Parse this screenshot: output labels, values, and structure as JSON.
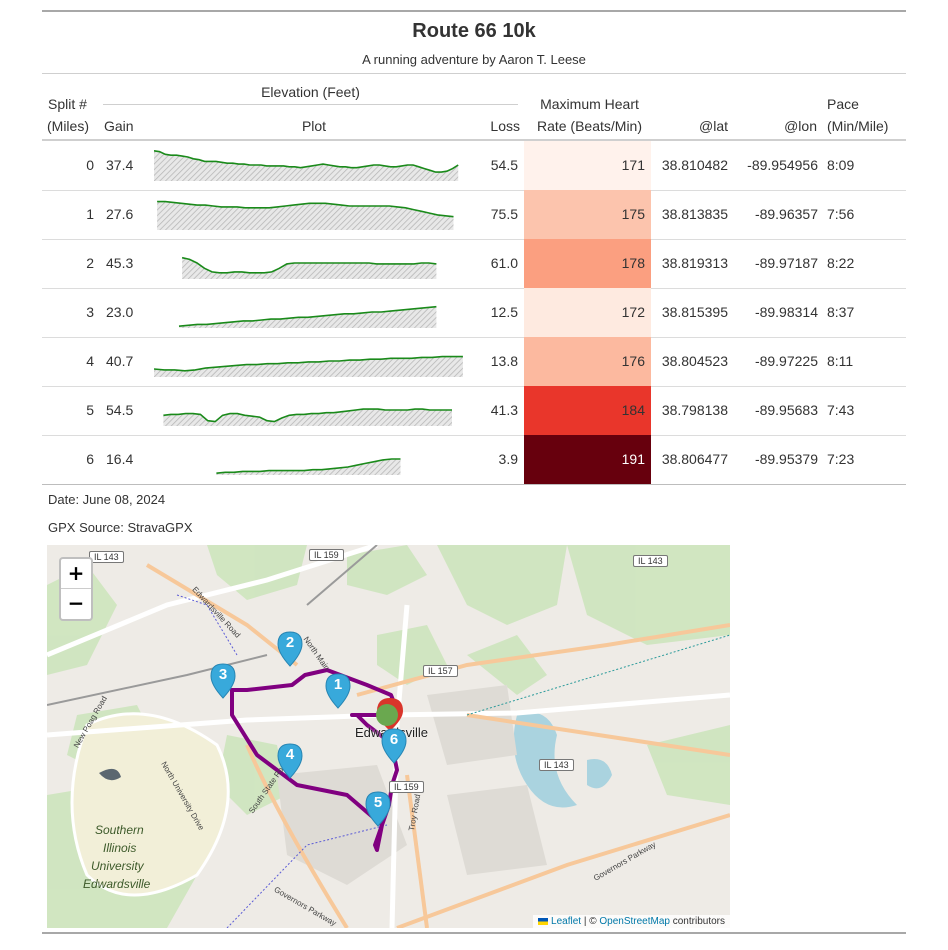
{
  "header": {
    "title": "Route 66 10k",
    "subtitle": "A running adventure by Aaron T. Leese"
  },
  "columns": {
    "split_line1": "Split #",
    "split_line2": "(Miles)",
    "elevation_spanner": "Elevation (Feet)",
    "gain": "Gain",
    "plot": "Plot",
    "loss": "Loss",
    "hr_line1": "Maximum Heart",
    "hr_line2": "Rate (Beats/Min)",
    "lat": "@lat",
    "lon": "@lon",
    "pace_line1": "Pace",
    "pace_line2": "(Min/Mile)"
  },
  "rows": [
    {
      "split": "0",
      "gain": "37.4",
      "loss": "54.5",
      "hr": "171",
      "lat": "38.810482",
      "lon": "-89.954956",
      "pace": "8:09",
      "hr_color": "#fff2ec",
      "hr_text": "#333333",
      "elev": [
        62,
        61,
        58,
        57,
        57,
        56,
        55,
        53,
        52,
        50,
        50,
        50,
        49,
        48,
        48,
        47,
        47,
        46,
        46,
        46,
        45,
        45,
        45,
        45,
        44,
        44,
        43,
        44,
        45,
        46,
        47,
        46,
        45,
        44,
        44,
        43,
        43,
        44,
        45,
        46,
        46,
        45,
        44,
        44,
        45,
        46,
        46,
        44,
        42,
        40,
        38,
        38,
        39,
        42,
        46
      ],
      "plot_span": [
        0.0,
        0.975
      ]
    },
    {
      "split": "1",
      "gain": "27.6",
      "loss": "75.5",
      "hr": "175",
      "lat": "38.813835",
      "lon": "-89.96357",
      "pace": "7:56",
      "hr_color": "#fcc4ad",
      "hr_text": "#333333",
      "elev": [
        60,
        60,
        59,
        58,
        57,
        56,
        56,
        55,
        54,
        54,
        54,
        53,
        53,
        53,
        53,
        54,
        55,
        56,
        57,
        58,
        58,
        58,
        57,
        56,
        55,
        55,
        55,
        55,
        55,
        55,
        54,
        53,
        51,
        49,
        47,
        45,
        44,
        43
      ],
      "plot_span": [
        0.01,
        0.96
      ]
    },
    {
      "split": "2",
      "gain": "45.3",
      "loss": "61.0",
      "hr": "178",
      "lat": "38.819313",
      "lon": "-89.97187",
      "pace": "8:22",
      "hr_color": "#fb9f80",
      "hr_text": "#333333",
      "elev": [
        52,
        50,
        46,
        40,
        36,
        35,
        35,
        36,
        36,
        35,
        35,
        35,
        36,
        40,
        45,
        46,
        46,
        46,
        46,
        46,
        46,
        46,
        46,
        46,
        46,
        46,
        45,
        45,
        45,
        45,
        45,
        45,
        46,
        46,
        45
      ],
      "plot_span": [
        0.09,
        0.905
      ]
    },
    {
      "split": "3",
      "gain": "23.0",
      "loss": "12.5",
      "hr": "172",
      "lat": "38.815395",
      "lon": "-89.98314",
      "pace": "8:37",
      "hr_color": "#feeae0",
      "hr_text": "#333333",
      "elev": [
        30,
        31,
        32,
        32,
        33,
        34,
        35,
        36,
        36,
        37,
        38,
        38,
        39,
        40,
        40,
        41,
        42,
        43,
        44,
        44,
        45,
        46,
        46,
        47,
        48,
        49,
        50,
        51,
        52
      ],
      "plot_span": [
        0.08,
        0.905
      ]
    },
    {
      "split": "4",
      "gain": "40.7",
      "loss": "13.8",
      "hr": "176",
      "lat": "38.804523",
      "lon": "-89.97225",
      "pace": "8:11",
      "hr_color": "#fcb99f",
      "hr_text": "#333333",
      "elev": [
        37,
        36,
        36,
        35,
        36,
        38,
        39,
        40,
        41,
        42,
        42,
        43,
        43,
        44,
        44,
        45,
        45,
        46,
        46,
        47,
        47,
        48,
        48,
        49,
        49,
        49,
        50,
        50,
        51,
        51,
        51
      ],
      "plot_span": [
        0.0,
        0.99
      ]
    },
    {
      "split": "5",
      "gain": "54.5",
      "loss": "41.3",
      "hr": "184",
      "lat": "38.798138",
      "lon": "-89.95683",
      "pace": "7:43",
      "hr_color": "#e9362b",
      "hr_text": "#333333",
      "elev": [
        40,
        41,
        41,
        42,
        42,
        41,
        34,
        33,
        40,
        42,
        42,
        40,
        39,
        38,
        34,
        33,
        37,
        40,
        41,
        41,
        42,
        42,
        43,
        43,
        44,
        45,
        46,
        47,
        47,
        47,
        46,
        46,
        46,
        46,
        47,
        47,
        46,
        46,
        46,
        46
      ],
      "plot_span": [
        0.03,
        0.955
      ]
    },
    {
      "split": "6",
      "gain": "16.4",
      "loss": "3.9",
      "hr": "191",
      "lat": "38.806477",
      "lon": "-89.95379",
      "pace": "7:23",
      "hr_color": "#67000d",
      "hr_text": "#ffffff",
      "elev": [
        30,
        31,
        31,
        32,
        32,
        32,
        33,
        33,
        33,
        33,
        33,
        34,
        34,
        35,
        36,
        37,
        39,
        41,
        43,
        45,
        46,
        46
      ],
      "plot_span": [
        0.2,
        0.79
      ]
    }
  ],
  "footnotes": {
    "date": "Date: June 08, 2024",
    "source": "GPX Source: StravaGPX"
  },
  "map": {
    "zoom_in": "+",
    "zoom_out": "−",
    "leaflet": "Leaflet",
    "attribution_sep": " | © ",
    "osm": "OpenStreetMap",
    "contributors": " contributors",
    "labels": [
      "IL 143",
      "IL 159",
      "IL 143",
      "IL 157",
      "IL 159",
      "IL 143",
      "Edwardsville Road",
      "New Poag Road",
      "North University Drive",
      "Southern",
      "Illinois",
      "University",
      "Edwardsville",
      "South State Route 157",
      "Governors Parkway",
      "Governors Parkway",
      "Troy Road",
      "Edwardsville",
      "North Main"
    ],
    "markers": [
      "1",
      "2",
      "3",
      "4",
      "5",
      "6"
    ],
    "route_color": "#800080",
    "marker_color": "#38a9db"
  }
}
